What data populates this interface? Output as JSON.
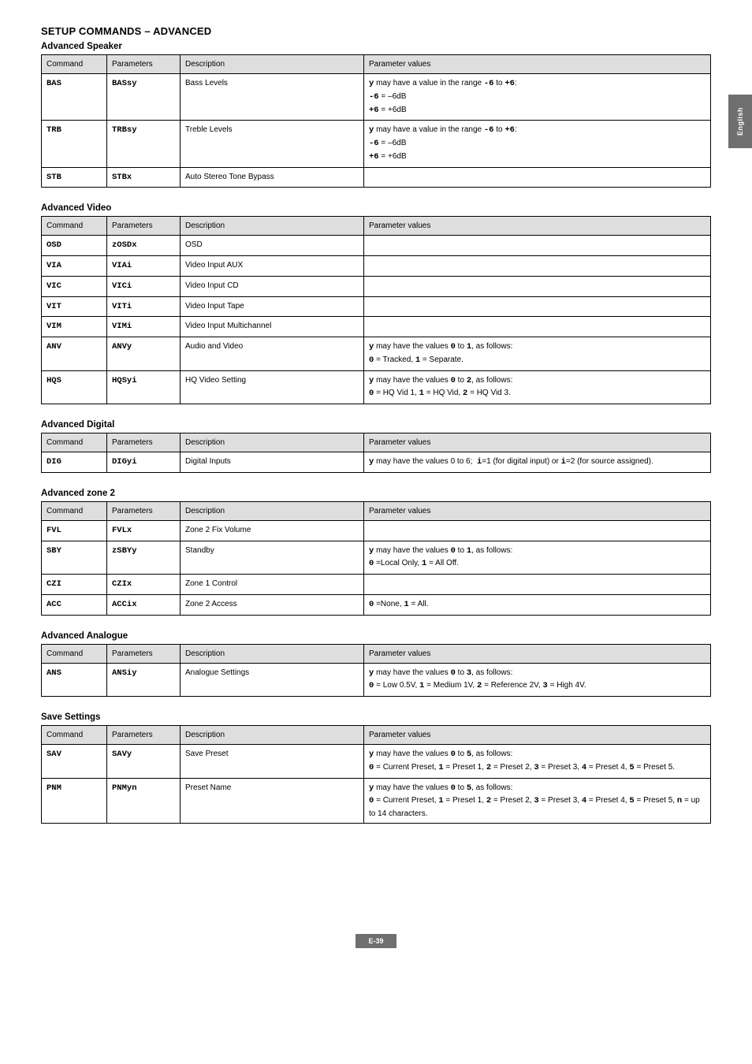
{
  "side_tab": "English",
  "footer_page": "E-39",
  "section_title": "SETUP COMMANDS – ADVANCED",
  "headers": {
    "cmd": "Command",
    "param": "Parameters",
    "desc": "Description",
    "val": "Parameter values"
  },
  "adv_speaker": {
    "title": "Advanced Speaker",
    "rows": [
      {
        "cmd": "BAS",
        "param": "BASsy",
        "desc": "Bass Levels",
        "val": "<span class='mono'>y</span> may have a value in the range <span class='mono'>-6</span> to <span class='mono'>+6</span>:<br><span class='mono'>-6</span> = –6dB<br><span class='mono'>+6</span> = +6dB"
      },
      {
        "cmd": "TRB",
        "param": "TRBsy",
        "desc": "Treble Levels",
        "val": "<span class='mono'>y</span> may have a value in the range <span class='mono'>-6</span> to <span class='mono'>+6</span>:<br><span class='mono'>-6</span> = –6dB<br><span class='mono'>+6</span> = +6dB"
      },
      {
        "cmd": "STB",
        "param": "STBx",
        "desc": "Auto Stereo Tone Bypass",
        "val": ""
      }
    ]
  },
  "adv_video": {
    "title": "Advanced Video",
    "rows": [
      {
        "cmd": "OSD",
        "param": "zOSDx",
        "desc": "OSD",
        "val": ""
      },
      {
        "cmd": "VIA",
        "param": "VIAi",
        "desc": "Video Input AUX",
        "val": ""
      },
      {
        "cmd": "VIC",
        "param": "VICi",
        "desc": "Video Input CD",
        "val": ""
      },
      {
        "cmd": "VIT",
        "param": "VITi",
        "desc": "Video Input Tape",
        "val": ""
      },
      {
        "cmd": "VIM",
        "param": "VIMi",
        "desc": "Video Input Multichannel",
        "val": ""
      },
      {
        "cmd": "ANV",
        "param": "ANVy",
        "desc": "Audio and Video",
        "val": "<span class='mono'>y</span> may have the values <span class='mono'>0</span> to <span class='mono'>1</span>, as follows:<br><span class='mono'>0</span> = Tracked, <span class='mono'>1</span> = Separate."
      },
      {
        "cmd": "HQS",
        "param": "HQSyi",
        "desc": "HQ Video Setting",
        "val": "<span class='mono'>y</span> may have the values <span class='mono'>0</span> to <span class='mono'>2</span>, as follows:<br><span class='mono'>0</span> = HQ Vid 1, <span class='mono'>1</span> = HQ Vid, <span class='mono'>2</span> = HQ Vid 3."
      }
    ]
  },
  "adv_digital": {
    "title": "Advanced Digital",
    "rows": [
      {
        "cmd": "DIG",
        "param": "DIGyi",
        "desc": "Digital Inputs",
        "val": "<span class='mono'>y</span> may have the values 0 to 6; &nbsp;<span class='mono'>i</span>=1 (for digital input) or <span class='mono'>i</span>=2 (for source assigned)."
      }
    ]
  },
  "adv_zone2": {
    "title": "Advanced zone 2",
    "rows": [
      {
        "cmd": "FVL",
        "param": "FVLx",
        "desc": "Zone 2 Fix Volume",
        "val": ""
      },
      {
        "cmd": "SBY",
        "param": "zSBYy",
        "desc": "Standby",
        "val": "<span class='mono'>y</span> may have the values <span class='mono'>0</span> to <span class='mono'>1</span>, as follows:<br><span class='mono'>0</span> =Local Only, <span class='mono'>1</span> = All Off."
      },
      {
        "cmd": "CZI",
        "param": "CZIx",
        "desc": "Zone 1 Control",
        "val": ""
      },
      {
        "cmd": "ACC",
        "param": "ACCix",
        "desc": "Zone 2 Access",
        "val": "<span class='mono'>0</span> =None, <span class='mono'>1</span> = All."
      }
    ]
  },
  "adv_analogue": {
    "title": "Advanced Analogue",
    "rows": [
      {
        "cmd": "ANS",
        "param": "ANSiy",
        "desc": "Analogue Settings",
        "val": "<span class='mono'>y</span> may have the values <span class='mono'>0</span> to <span class='mono'>3</span>, as follows:<br><span class='mono'>0</span> = Low 0.5V, <span class='mono'>1</span> = Medium 1V, <span class='mono'>2</span> = Reference 2V, <span class='mono'>3</span> = High 4V."
      }
    ]
  },
  "save_settings": {
    "title": "Save Settings",
    "rows": [
      {
        "cmd": "SAV",
        "param": "SAVy",
        "desc": "Save Preset",
        "val": "<span class='mono'>y</span> may have the values <span class='mono'>0</span> to <span class='mono'>5</span>, as follows:<br><span class='mono'>0</span> = Current Preset, <span class='mono'>1</span> = Preset 1, <span class='mono'>2</span> = Preset 2, <span class='mono'>3</span> = Preset 3, <span class='mono'>4</span> = Preset 4, <span class='mono'>5</span> = Preset 5."
      },
      {
        "cmd": "PNM",
        "param": "PNMyn",
        "desc": "Preset Name",
        "val": "<span class='mono'>y</span> may have the values <span class='mono'>0</span> to <span class='mono'>5</span>, as follows:<br><span class='mono'>0</span> = Current Preset, <span class='mono'>1</span> = Preset 1, <span class='mono'>2</span> = Preset 2, <span class='mono'>3</span> = Preset 3, <span class='mono'>4</span> = Preset 4, <span class='mono'>5</span> = Preset 5, <span class='mono'>n</span> = up to 14 characters."
      }
    ]
  }
}
